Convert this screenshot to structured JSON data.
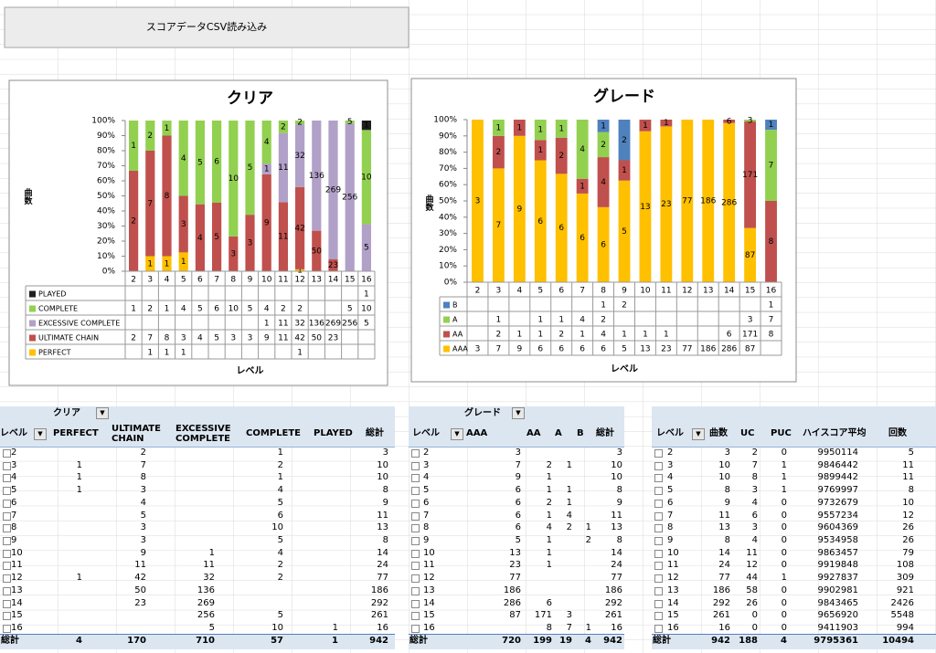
{
  "button": "スコアデータCSV読み込み",
  "chart_data": [
    {
      "type": "bar",
      "stacking": "percent",
      "title": "クリア",
      "ylabel": "曲数",
      "xlabel": "レベル",
      "categories": [
        2,
        3,
        4,
        5,
        6,
        7,
        8,
        9,
        10,
        11,
        12,
        13,
        14,
        15,
        16
      ],
      "series": [
        {
          "name": "PLAYED",
          "color": "#1f1f1f",
          "values": [
            null,
            null,
            null,
            null,
            null,
            null,
            null,
            null,
            null,
            null,
            null,
            null,
            null,
            null,
            1
          ]
        },
        {
          "name": "COMPLETE",
          "color": "#92d050",
          "values": [
            1,
            2,
            1,
            4,
            5,
            6,
            10,
            5,
            4,
            2,
            2,
            null,
            null,
            5,
            10
          ]
        },
        {
          "name": "EXCESSIVE COMPLETE",
          "color": "#b1a0c7",
          "values": [
            null,
            null,
            null,
            null,
            null,
            null,
            null,
            null,
            1,
            11,
            32,
            136,
            269,
            256,
            5
          ]
        },
        {
          "name": "ULTIMATE CHAIN",
          "color": "#c0504d",
          "values": [
            2,
            7,
            8,
            3,
            4,
            5,
            3,
            3,
            9,
            11,
            42,
            50,
            23,
            null,
            null
          ]
        },
        {
          "name": "PERFECT",
          "color": "#ffc000",
          "values": [
            null,
            1,
            1,
            1,
            null,
            null,
            null,
            null,
            null,
            null,
            1,
            null,
            null,
            null,
            null
          ]
        }
      ],
      "ylim": [
        0,
        100
      ],
      "yticks": [
        {
          "value": 0,
          "label": "0%"
        },
        {
          "value": 10,
          "label": "10%"
        },
        {
          "value": 20,
          "label": "20%"
        },
        {
          "value": 30,
          "label": "30%"
        },
        {
          "value": 40,
          "label": "40%"
        },
        {
          "value": 50,
          "label": "50%"
        },
        {
          "value": 60,
          "label": "60%"
        },
        {
          "value": 70,
          "label": "70%"
        },
        {
          "value": 80,
          "label": "80%"
        },
        {
          "value": 90,
          "label": "90%"
        },
        {
          "value": 100,
          "label": "100%"
        }
      ],
      "grid": false
    },
    {
      "type": "bar",
      "stacking": "percent",
      "title": "グレード",
      "ylabel": "曲数",
      "xlabel": "レベル",
      "categories": [
        2,
        3,
        4,
        5,
        6,
        7,
        8,
        9,
        10,
        11,
        12,
        13,
        14,
        15,
        16
      ],
      "series": [
        {
          "name": "B",
          "color": "#4f81bd",
          "values": [
            null,
            null,
            null,
            null,
            null,
            null,
            1,
            2,
            null,
            null,
            null,
            null,
            null,
            null,
            1
          ]
        },
        {
          "name": "A",
          "color": "#92d050",
          "values": [
            null,
            1,
            null,
            1,
            1,
            4,
            2,
            null,
            null,
            null,
            null,
            null,
            null,
            3,
            7
          ]
        },
        {
          "name": "AA",
          "color": "#c0504d",
          "values": [
            null,
            2,
            1,
            1,
            2,
            1,
            4,
            1,
            1,
            1,
            null,
            null,
            6,
            171,
            8
          ]
        },
        {
          "name": "AAA",
          "color": "#ffc000",
          "values": [
            3,
            7,
            9,
            6,
            6,
            6,
            6,
            5,
            13,
            23,
            77,
            186,
            286,
            87,
            null
          ]
        }
      ],
      "ylim": [
        0,
        100
      ],
      "yticks": [
        {
          "value": 0,
          "label": "0%"
        },
        {
          "value": 10,
          "label": "10%"
        },
        {
          "value": 20,
          "label": "20%"
        },
        {
          "value": 30,
          "label": "30%"
        },
        {
          "value": 40,
          "label": "40%"
        },
        {
          "value": 50,
          "label": "50%"
        },
        {
          "value": 60,
          "label": "60%"
        },
        {
          "value": 70,
          "label": "70%"
        },
        {
          "value": 80,
          "label": "80%"
        },
        {
          "value": 90,
          "label": "90%"
        },
        {
          "value": 100,
          "label": "100%"
        }
      ],
      "grid": false
    }
  ],
  "tables": [
    {
      "filter": "クリア",
      "header": [
        "レベル",
        "PERFECT",
        "ULTIMATE CHAIN",
        "EXCESSIVE COMPLETE",
        "COMPLETE",
        "PLAYED",
        "総計"
      ],
      "rows": [
        [
          2,
          null,
          2,
          null,
          1,
          null,
          3
        ],
        [
          3,
          1,
          7,
          null,
          2,
          null,
          10
        ],
        [
          4,
          1,
          8,
          null,
          1,
          null,
          10
        ],
        [
          5,
          1,
          3,
          null,
          4,
          null,
          8
        ],
        [
          6,
          null,
          4,
          null,
          5,
          null,
          9
        ],
        [
          7,
          null,
          5,
          null,
          6,
          null,
          11
        ],
        [
          8,
          null,
          3,
          null,
          10,
          null,
          13
        ],
        [
          9,
          null,
          3,
          null,
          5,
          null,
          8
        ],
        [
          10,
          null,
          9,
          1,
          4,
          null,
          14
        ],
        [
          11,
          null,
          11,
          11,
          2,
          null,
          24
        ],
        [
          12,
          1,
          42,
          32,
          2,
          null,
          77
        ],
        [
          13,
          null,
          50,
          136,
          null,
          null,
          186
        ],
        [
          14,
          null,
          23,
          269,
          null,
          null,
          292
        ],
        [
          15,
          null,
          null,
          256,
          5,
          null,
          261
        ],
        [
          16,
          null,
          null,
          5,
          10,
          1,
          16
        ]
      ],
      "total_row": [
        "総計",
        4,
        170,
        710,
        57,
        1,
        942
      ]
    },
    {
      "filter": "グレード",
      "header": [
        "レベル",
        "AAA",
        "AA",
        "A",
        "B",
        "総計"
      ],
      "rows": [
        [
          2,
          3,
          null,
          null,
          null,
          3
        ],
        [
          3,
          7,
          2,
          1,
          null,
          10
        ],
        [
          4,
          9,
          1,
          null,
          null,
          10
        ],
        [
          5,
          6,
          1,
          1,
          null,
          8
        ],
        [
          6,
          6,
          2,
          1,
          null,
          9
        ],
        [
          7,
          6,
          1,
          4,
          null,
          11
        ],
        [
          8,
          6,
          4,
          2,
          1,
          13
        ],
        [
          9,
          5,
          1,
          null,
          2,
          8
        ],
        [
          10,
          13,
          1,
          null,
          null,
          14
        ],
        [
          11,
          23,
          1,
          null,
          null,
          24
        ],
        [
          12,
          77,
          null,
          null,
          null,
          77
        ],
        [
          13,
          186,
          null,
          null,
          null,
          186
        ],
        [
          14,
          286,
          6,
          null,
          null,
          292
        ],
        [
          15,
          87,
          171,
          3,
          null,
          261
        ],
        [
          16,
          null,
          8,
          7,
          1,
          16
        ]
      ],
      "total_row": [
        "総計",
        720,
        199,
        19,
        4,
        942
      ]
    },
    {
      "header": [
        "レベル",
        "曲数",
        "UC",
        "PUC",
        "ハイスコア平均",
        "回数"
      ],
      "rows": [
        [
          2,
          3,
          2,
          0,
          9950114,
          5
        ],
        [
          3,
          10,
          7,
          1,
          9846442,
          11
        ],
        [
          4,
          10,
          8,
          1,
          9899442,
          11
        ],
        [
          5,
          8,
          3,
          1,
          9769997,
          8
        ],
        [
          6,
          9,
          4,
          0,
          9732679,
          10
        ],
        [
          7,
          11,
          6,
          0,
          9557234,
          12
        ],
        [
          8,
          13,
          3,
          0,
          9604369,
          26
        ],
        [
          9,
          8,
          4,
          0,
          9534958,
          26
        ],
        [
          10,
          14,
          11,
          0,
          9863457,
          79
        ],
        [
          11,
          24,
          12,
          0,
          9919848,
          108
        ],
        [
          12,
          77,
          44,
          1,
          9927837,
          309
        ],
        [
          13,
          186,
          58,
          0,
          9902981,
          921
        ],
        [
          14,
          292,
          26,
          0,
          9843465,
          2426
        ],
        [
          15,
          261,
          0,
          0,
          9656920,
          5548
        ],
        [
          16,
          16,
          0,
          0,
          9411903,
          994
        ]
      ],
      "total_row": [
        "総計",
        942,
        188,
        4,
        9795361,
        10494
      ]
    }
  ]
}
